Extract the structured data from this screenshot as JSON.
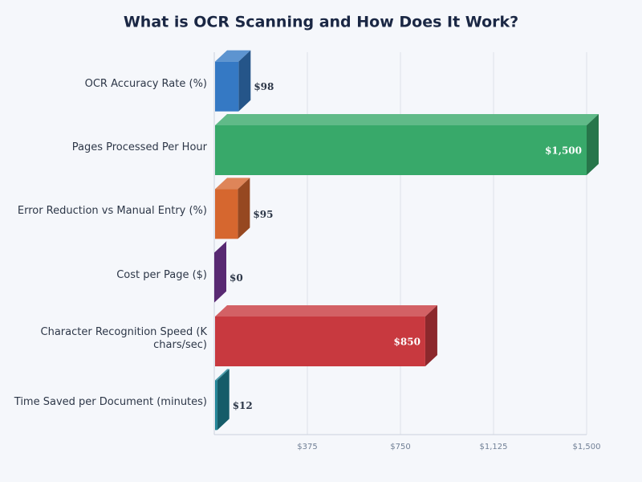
{
  "chart_data": {
    "type": "bar",
    "orientation": "horizontal",
    "title": "What is OCR Scanning and How Does It Work?",
    "categories": [
      "OCR Accuracy Rate (%)",
      "Pages Processed Per Hour",
      "Error Reduction vs Manual Entry (%)",
      "Cost per Page ($)",
      "Character Recognition Speed (K chars/sec)",
      "Time Saved per Document (minutes)"
    ],
    "values": [
      98,
      1500,
      95,
      0,
      850,
      12
    ],
    "value_labels": [
      "$98",
      "$1,500",
      "$95",
      "$0",
      "$850",
      "$12"
    ],
    "colors": [
      "#3579c4",
      "#38a96a",
      "#d6672f",
      "#7e3aa3",
      "#c8393f",
      "#1e8396"
    ],
    "xlim": [
      0,
      1500
    ],
    "xticks": [
      {
        "value": 375,
        "label": "$375"
      },
      {
        "value": 750,
        "label": "$750"
      },
      {
        "value": 1125,
        "label": "$1,125"
      },
      {
        "value": 1500,
        "label": "$1,500"
      }
    ],
    "grid": true
  }
}
